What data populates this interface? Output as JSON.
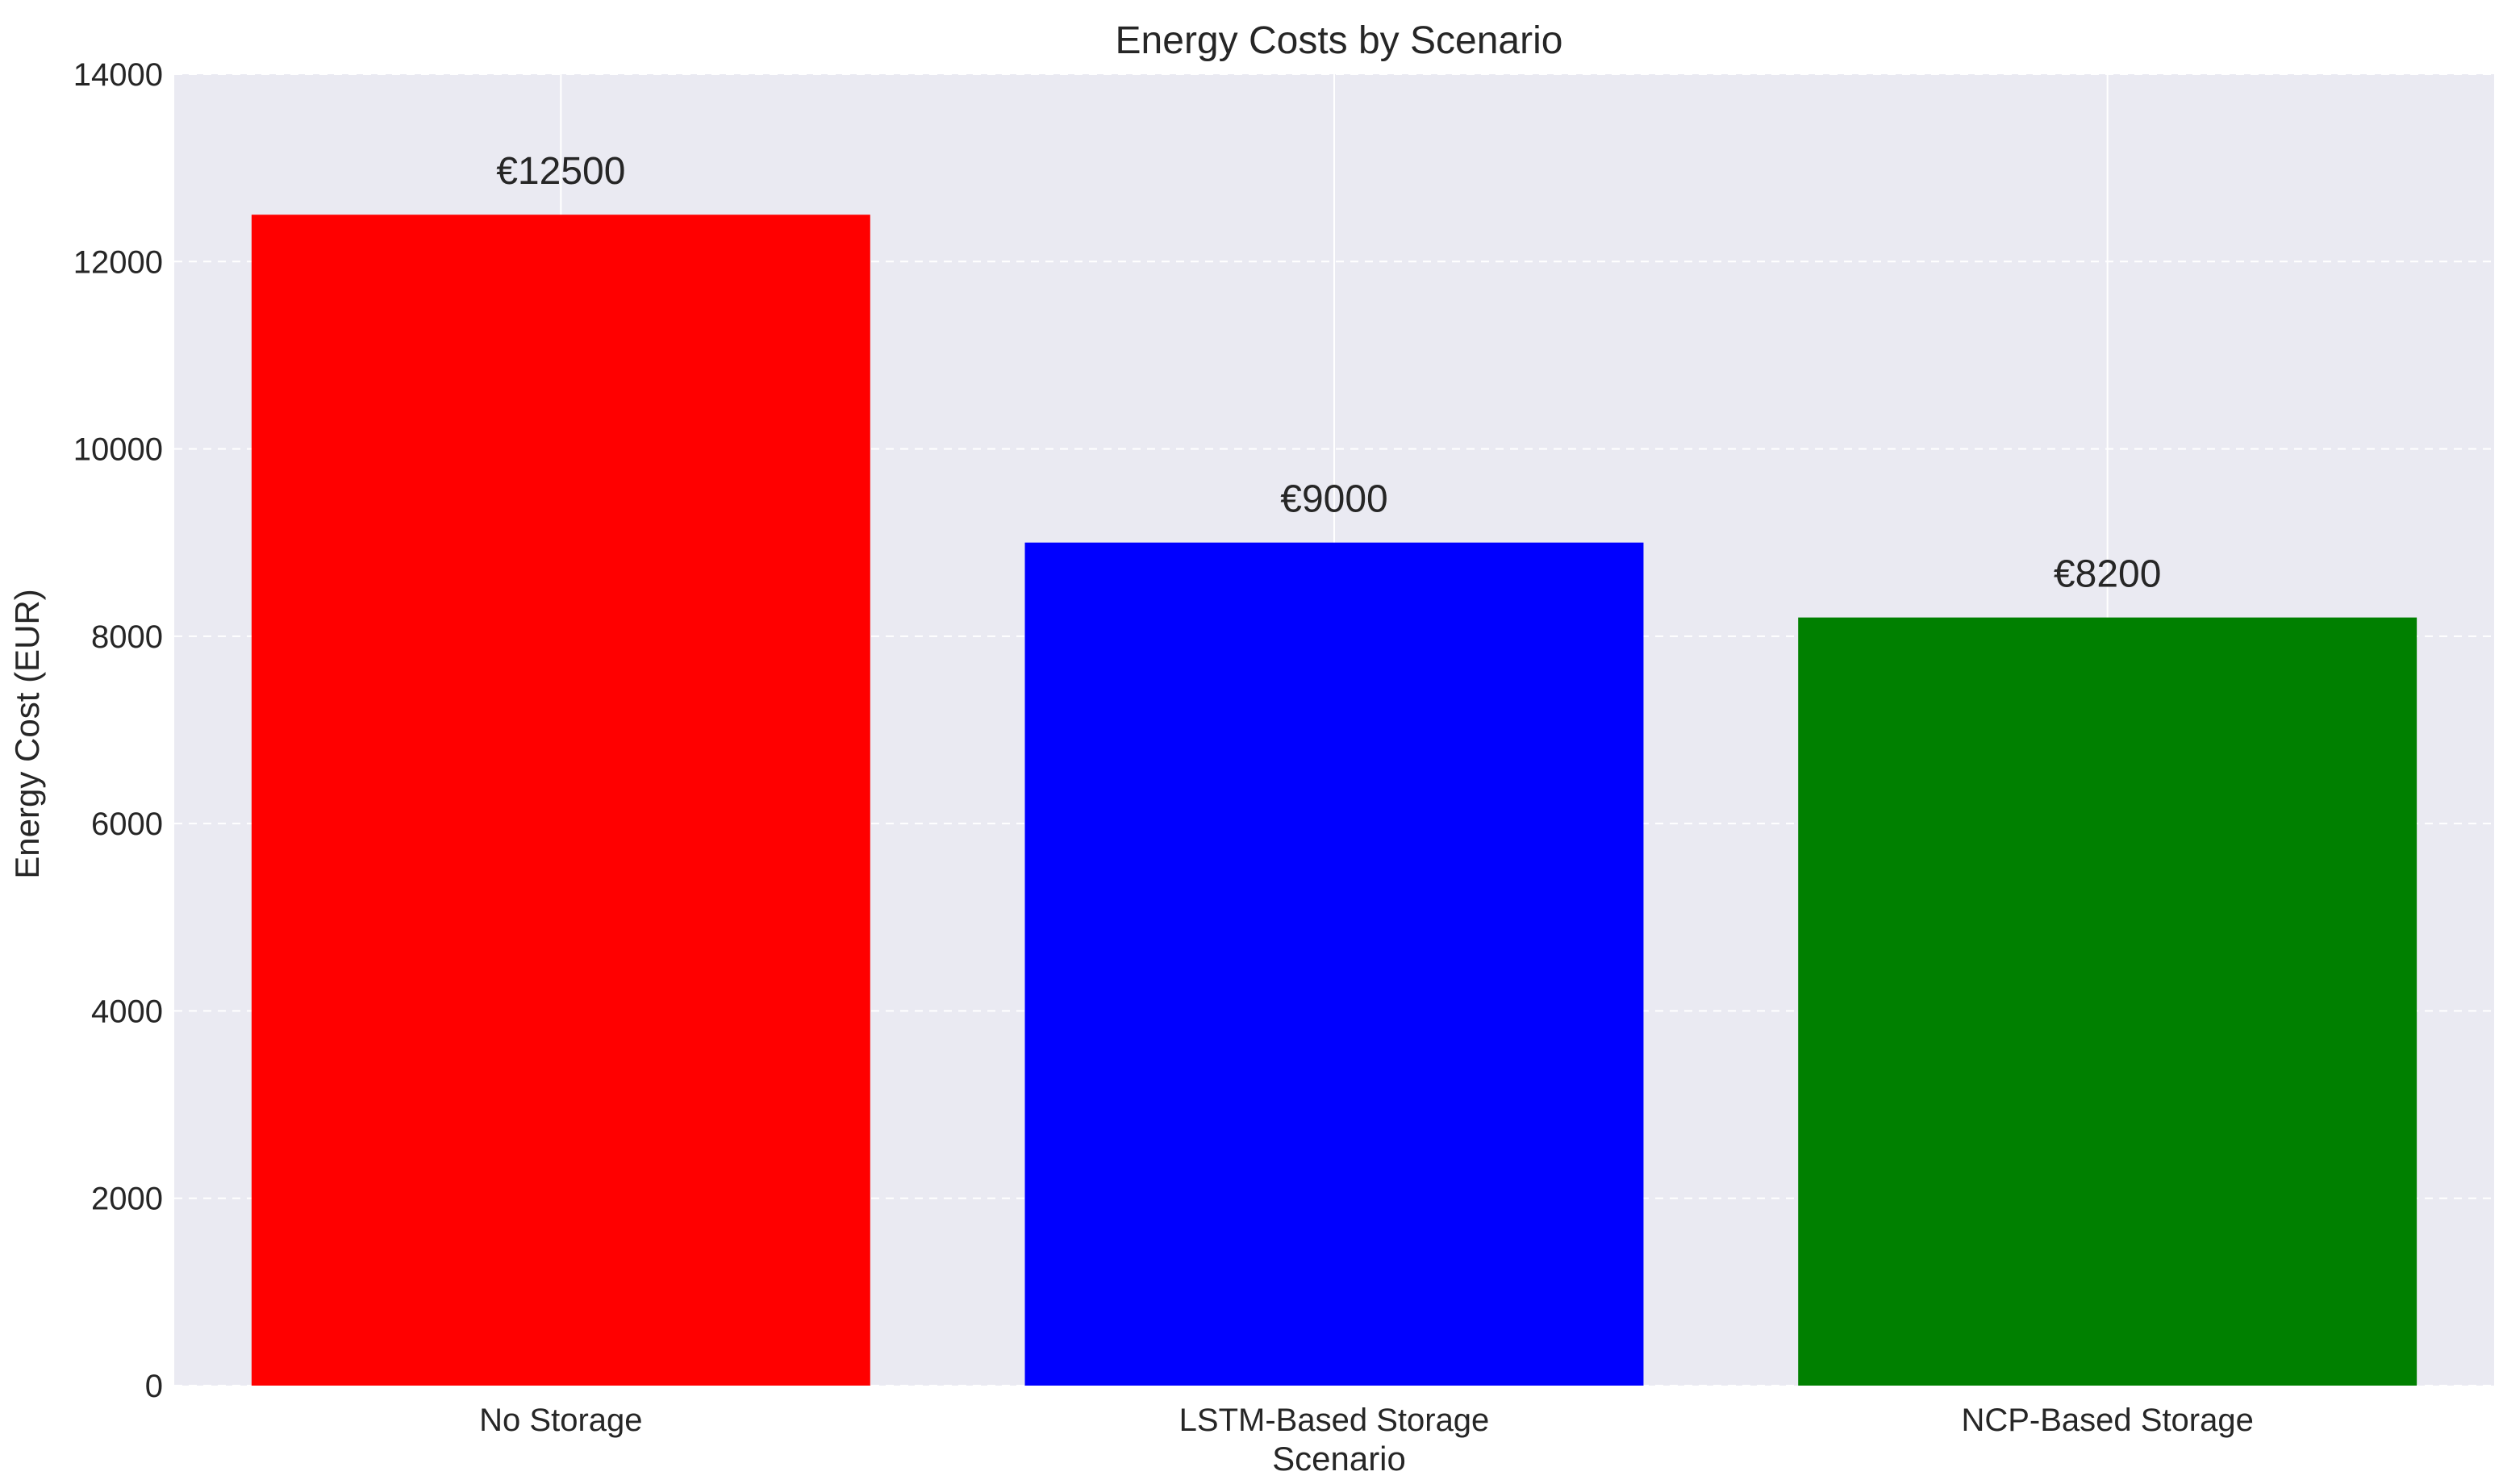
{
  "chart_data": {
    "type": "bar",
    "title": "Energy Costs by Scenario",
    "xlabel": "Scenario",
    "ylabel": "Energy Cost (EUR)",
    "categories": [
      "No Storage",
      "LSTM-Based Storage",
      "NCP-Based Storage"
    ],
    "values": [
      12500,
      9000,
      8200
    ],
    "value_labels": [
      "€12500",
      "€9000",
      "€8200"
    ],
    "colors": [
      "#ff0000",
      "#0000ff",
      "#008000"
    ],
    "ylim": [
      0,
      14000
    ],
    "yticks": [
      0,
      2000,
      4000,
      6000,
      8000,
      10000,
      12000,
      14000
    ],
    "grid": true,
    "background": "#eaeaf2",
    "gridline_color": "#ffffff"
  }
}
